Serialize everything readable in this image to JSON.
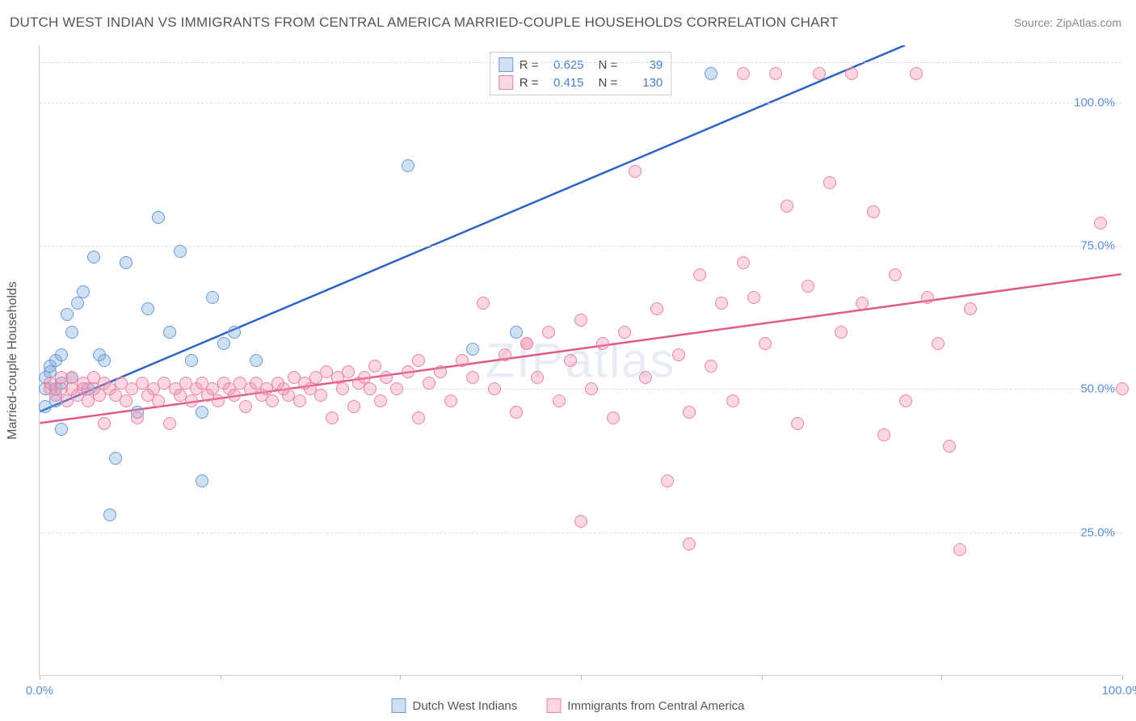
{
  "title": "DUTCH WEST INDIAN VS IMMIGRANTS FROM CENTRAL AMERICA MARRIED-COUPLE HOUSEHOLDS CORRELATION CHART",
  "source": "Source: ZipAtlas.com",
  "watermark": "ZIPatlas",
  "chart": {
    "type": "scatter",
    "y_axis_label": "Married-couple Households",
    "xlim": [
      0,
      100
    ],
    "ylim": [
      0,
      110
    ],
    "x_ticks": [
      {
        "pos": 0,
        "label": "0.0%"
      },
      {
        "pos": 16.7,
        "label": ""
      },
      {
        "pos": 33.3,
        "label": ""
      },
      {
        "pos": 50.0,
        "label": ""
      },
      {
        "pos": 66.7,
        "label": ""
      },
      {
        "pos": 83.3,
        "label": ""
      },
      {
        "pos": 100,
        "label": "100.0%"
      }
    ],
    "y_ticks": [
      {
        "pos": 25,
        "label": "25.0%"
      },
      {
        "pos": 50,
        "label": "50.0%"
      },
      {
        "pos": 75,
        "label": "75.0%"
      },
      {
        "pos": 100,
        "label": "100.0%"
      },
      {
        "pos": 107,
        "label": ""
      }
    ],
    "grid_color": "#dddddd",
    "background_color": "#ffffff",
    "axis_label_color": "#5b8fd6",
    "marker_radius": 8,
    "marker_stroke_width": 1.5,
    "series": [
      {
        "name": "Dutch West Indians",
        "fill": "rgba(120,165,220,0.35)",
        "stroke": "#6a9bd8",
        "r": 0.625,
        "n": 39,
        "trend": {
          "x1": 0,
          "y1": 46,
          "x2": 80,
          "y2": 110,
          "color": "#2e63c4",
          "width": 2.5
        },
        "points": [
          [
            0.5,
            47
          ],
          [
            0.5,
            50
          ],
          [
            0.5,
            52
          ],
          [
            1,
            53
          ],
          [
            1,
            54
          ],
          [
            1.5,
            48
          ],
          [
            1.5,
            50
          ],
          [
            1.5,
            55
          ],
          [
            2,
            43
          ],
          [
            2,
            51
          ],
          [
            2,
            56
          ],
          [
            2.5,
            63
          ],
          [
            3,
            52
          ],
          [
            3,
            60
          ],
          [
            3.5,
            65
          ],
          [
            4,
            67
          ],
          [
            4.5,
            50
          ],
          [
            5,
            73
          ],
          [
            5.5,
            56
          ],
          [
            6,
            55
          ],
          [
            6.5,
            28
          ],
          [
            7,
            38
          ],
          [
            8,
            72
          ],
          [
            9,
            46
          ],
          [
            10,
            64
          ],
          [
            11,
            80
          ],
          [
            12,
            60
          ],
          [
            13,
            74
          ],
          [
            14,
            55
          ],
          [
            15,
            46
          ],
          [
            15,
            34
          ],
          [
            16,
            66
          ],
          [
            17,
            58
          ],
          [
            18,
            60
          ],
          [
            20,
            55
          ],
          [
            34,
            89
          ],
          [
            40,
            57
          ],
          [
            44,
            60
          ],
          [
            62,
            105
          ]
        ]
      },
      {
        "name": "Immigrants from Central America",
        "fill": "rgba(240,140,170,0.35)",
        "stroke": "#e985a5",
        "r": 0.415,
        "n": 130,
        "trend": {
          "x1": 0,
          "y1": 44,
          "x2": 100,
          "y2": 70,
          "color": "#e05a8a",
          "width": 2.5
        },
        "points": [
          [
            1,
            50
          ],
          [
            1,
            51
          ],
          [
            1.5,
            49
          ],
          [
            2,
            50
          ],
          [
            2,
            52
          ],
          [
            2.5,
            48
          ],
          [
            3,
            50
          ],
          [
            3,
            52
          ],
          [
            3.5,
            49
          ],
          [
            4,
            50
          ],
          [
            4,
            51
          ],
          [
            4.5,
            48
          ],
          [
            5,
            50
          ],
          [
            5,
            52
          ],
          [
            5.5,
            49
          ],
          [
            6,
            51
          ],
          [
            6,
            44
          ],
          [
            6.5,
            50
          ],
          [
            7,
            49
          ],
          [
            7.5,
            51
          ],
          [
            8,
            48
          ],
          [
            8.5,
            50
          ],
          [
            9,
            45
          ],
          [
            9.5,
            51
          ],
          [
            10,
            49
          ],
          [
            10.5,
            50
          ],
          [
            11,
            48
          ],
          [
            11.5,
            51
          ],
          [
            12,
            44
          ],
          [
            12.5,
            50
          ],
          [
            13,
            49
          ],
          [
            13.5,
            51
          ],
          [
            14,
            48
          ],
          [
            14.5,
            50
          ],
          [
            15,
            51
          ],
          [
            15.5,
            49
          ],
          [
            16,
            50
          ],
          [
            16.5,
            48
          ],
          [
            17,
            51
          ],
          [
            17.5,
            50
          ],
          [
            18,
            49
          ],
          [
            18.5,
            51
          ],
          [
            19,
            47
          ],
          [
            19.5,
            50
          ],
          [
            20,
            51
          ],
          [
            20.5,
            49
          ],
          [
            21,
            50
          ],
          [
            21.5,
            48
          ],
          [
            22,
            51
          ],
          [
            22.5,
            50
          ],
          [
            23,
            49
          ],
          [
            23.5,
            52
          ],
          [
            24,
            48
          ],
          [
            24.5,
            51
          ],
          [
            25,
            50
          ],
          [
            25.5,
            52
          ],
          [
            26,
            49
          ],
          [
            26.5,
            53
          ],
          [
            27,
            45
          ],
          [
            27.5,
            52
          ],
          [
            28,
            50
          ],
          [
            28.5,
            53
          ],
          [
            29,
            47
          ],
          [
            29.5,
            51
          ],
          [
            30,
            52
          ],
          [
            30.5,
            50
          ],
          [
            31,
            54
          ],
          [
            31.5,
            48
          ],
          [
            32,
            52
          ],
          [
            33,
            50
          ],
          [
            34,
            53
          ],
          [
            35,
            45
          ],
          [
            35,
            55
          ],
          [
            36,
            51
          ],
          [
            37,
            53
          ],
          [
            38,
            48
          ],
          [
            39,
            55
          ],
          [
            40,
            52
          ],
          [
            41,
            65
          ],
          [
            42,
            50
          ],
          [
            43,
            56
          ],
          [
            44,
            46
          ],
          [
            45,
            58
          ],
          [
            45,
            58
          ],
          [
            46,
            52
          ],
          [
            47,
            60
          ],
          [
            48,
            48
          ],
          [
            49,
            55
          ],
          [
            50,
            27
          ],
          [
            50,
            62
          ],
          [
            51,
            50
          ],
          [
            52,
            58
          ],
          [
            53,
            45
          ],
          [
            54,
            60
          ],
          [
            55,
            88
          ],
          [
            56,
            52
          ],
          [
            57,
            64
          ],
          [
            58,
            34
          ],
          [
            59,
            56
          ],
          [
            60,
            46
          ],
          [
            60,
            23
          ],
          [
            61,
            70
          ],
          [
            62,
            54
          ],
          [
            63,
            65
          ],
          [
            64,
            48
          ],
          [
            65,
            72
          ],
          [
            65,
            105
          ],
          [
            66,
            66
          ],
          [
            67,
            58
          ],
          [
            68,
            105
          ],
          [
            69,
            82
          ],
          [
            70,
            44
          ],
          [
            71,
            68
          ],
          [
            72,
            105
          ],
          [
            73,
            86
          ],
          [
            74,
            60
          ],
          [
            75,
            105
          ],
          [
            76,
            65
          ],
          [
            77,
            81
          ],
          [
            78,
            42
          ],
          [
            79,
            70
          ],
          [
            80,
            48
          ],
          [
            81,
            105
          ],
          [
            82,
            66
          ],
          [
            83,
            58
          ],
          [
            84,
            40
          ],
          [
            85,
            22
          ],
          [
            86,
            64
          ],
          [
            98,
            79
          ],
          [
            100,
            50
          ]
        ]
      }
    ]
  },
  "legend": {
    "r_label": "R =",
    "n_label": "N ="
  },
  "bottom_legend": {
    "items": [
      {
        "label": "Dutch West Indians",
        "fill": "rgba(120,165,220,0.35)",
        "stroke": "#6a9bd8"
      },
      {
        "label": "Immigrants from Central America",
        "fill": "rgba(240,140,170,0.35)",
        "stroke": "#e985a5"
      }
    ]
  }
}
